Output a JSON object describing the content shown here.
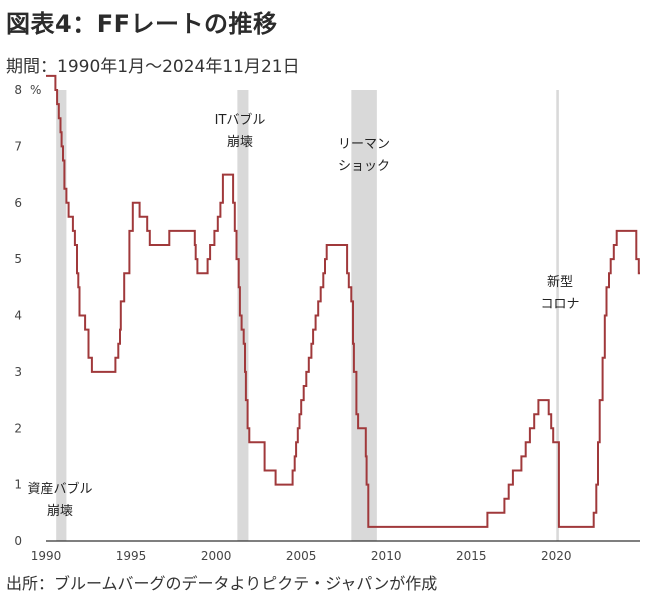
{
  "header": {
    "title": "図表4：FFレートの推移",
    "subtitle": "期間：1990年1月～2024年11月21日"
  },
  "footer": {
    "source": "出所：ブルームバーグのデータよりピクテ・ジャパンが作成"
  },
  "colors": {
    "line": "#a0393b",
    "band": "#d9d9d9",
    "axis": "#333333"
  },
  "chart_data": {
    "type": "line",
    "title": "FFレートの推移",
    "xlabel": "",
    "ylabel": "%",
    "xlim": [
      1990,
      2024.92
    ],
    "ylim": [
      0,
      8
    ],
    "xticks": [
      1990,
      1995,
      2000,
      2005,
      2010,
      2015,
      2020
    ],
    "yticks": [
      0,
      1,
      2,
      3,
      4,
      5,
      6,
      7,
      8
    ],
    "y_unit_label": "%",
    "grid": false,
    "step": true,
    "shaded_periods": [
      {
        "start": 1990.6,
        "end": 1991.2,
        "label": [
          "資産バブル",
          "崩壊"
        ]
      },
      {
        "start": 2001.25,
        "end": 2001.9,
        "label": [
          "ITバブル",
          "崩壊"
        ]
      },
      {
        "start": 2007.95,
        "end": 2009.45,
        "label": [
          "リーマン",
          "ショック"
        ]
      },
      {
        "start": 2020.0,
        "end": 2020.15,
        "label": [
          "新型",
          "コロナ"
        ]
      }
    ],
    "series": [
      {
        "values": [
          [
            1990.0,
            8.25
          ],
          [
            1990.55,
            8.0
          ],
          [
            1990.65,
            7.75
          ],
          [
            1990.75,
            7.5
          ],
          [
            1990.85,
            7.25
          ],
          [
            1990.92,
            7.0
          ],
          [
            1991.0,
            6.75
          ],
          [
            1991.08,
            6.25
          ],
          [
            1991.2,
            6.0
          ],
          [
            1991.33,
            5.75
          ],
          [
            1991.58,
            5.5
          ],
          [
            1991.7,
            5.25
          ],
          [
            1991.82,
            4.75
          ],
          [
            1991.9,
            4.5
          ],
          [
            1991.97,
            4.0
          ],
          [
            1992.3,
            3.75
          ],
          [
            1992.5,
            3.25
          ],
          [
            1992.7,
            3.0
          ],
          [
            1994.08,
            3.25
          ],
          [
            1994.25,
            3.5
          ],
          [
            1994.35,
            3.75
          ],
          [
            1994.4,
            4.25
          ],
          [
            1994.6,
            4.75
          ],
          [
            1994.9,
            5.5
          ],
          [
            1995.1,
            6.0
          ],
          [
            1995.5,
            5.75
          ],
          [
            1995.95,
            5.5
          ],
          [
            1996.1,
            5.25
          ],
          [
            1997.25,
            5.5
          ],
          [
            1998.75,
            5.25
          ],
          [
            1998.8,
            5.0
          ],
          [
            1998.9,
            4.75
          ],
          [
            1999.5,
            5.0
          ],
          [
            1999.65,
            5.25
          ],
          [
            1999.9,
            5.5
          ],
          [
            2000.1,
            5.75
          ],
          [
            2000.25,
            6.0
          ],
          [
            2000.4,
            6.5
          ],
          [
            2001.0,
            6.0
          ],
          [
            2001.1,
            5.5
          ],
          [
            2001.2,
            5.0
          ],
          [
            2001.33,
            4.5
          ],
          [
            2001.4,
            4.0
          ],
          [
            2001.5,
            3.75
          ],
          [
            2001.62,
            3.5
          ],
          [
            2001.7,
            3.0
          ],
          [
            2001.75,
            2.5
          ],
          [
            2001.85,
            2.0
          ],
          [
            2001.95,
            1.75
          ],
          [
            2002.85,
            1.25
          ],
          [
            2003.5,
            1.0
          ],
          [
            2004.5,
            1.25
          ],
          [
            2004.62,
            1.5
          ],
          [
            2004.7,
            1.75
          ],
          [
            2004.8,
            2.0
          ],
          [
            2004.9,
            2.25
          ],
          [
            2005.0,
            2.5
          ],
          [
            2005.15,
            2.75
          ],
          [
            2005.3,
            3.0
          ],
          [
            2005.45,
            3.25
          ],
          [
            2005.6,
            3.5
          ],
          [
            2005.7,
            3.75
          ],
          [
            2005.85,
            4.0
          ],
          [
            2006.0,
            4.25
          ],
          [
            2006.15,
            4.5
          ],
          [
            2006.3,
            4.75
          ],
          [
            2006.4,
            5.0
          ],
          [
            2006.5,
            5.25
          ],
          [
            2007.7,
            4.75
          ],
          [
            2007.8,
            4.5
          ],
          [
            2007.95,
            4.25
          ],
          [
            2008.05,
            3.5
          ],
          [
            2008.1,
            3.0
          ],
          [
            2008.25,
            2.25
          ],
          [
            2008.35,
            2.0
          ],
          [
            2008.8,
            1.5
          ],
          [
            2008.85,
            1.0
          ],
          [
            2008.95,
            0.25
          ],
          [
            2015.95,
            0.5
          ],
          [
            2016.95,
            0.75
          ],
          [
            2017.2,
            1.0
          ],
          [
            2017.45,
            1.25
          ],
          [
            2017.95,
            1.5
          ],
          [
            2018.2,
            1.75
          ],
          [
            2018.45,
            2.0
          ],
          [
            2018.7,
            2.25
          ],
          [
            2018.95,
            2.5
          ],
          [
            2019.55,
            2.25
          ],
          [
            2019.7,
            2.0
          ],
          [
            2019.82,
            1.75
          ],
          [
            2020.15,
            0.25
          ],
          [
            2022.2,
            0.5
          ],
          [
            2022.35,
            1.0
          ],
          [
            2022.45,
            1.75
          ],
          [
            2022.55,
            2.5
          ],
          [
            2022.72,
            3.25
          ],
          [
            2022.85,
            4.0
          ],
          [
            2022.95,
            4.5
          ],
          [
            2023.1,
            4.75
          ],
          [
            2023.2,
            5.0
          ],
          [
            2023.38,
            5.25
          ],
          [
            2023.55,
            5.5
          ],
          [
            2024.7,
            5.0
          ],
          [
            2024.85,
            4.75
          ],
          [
            2024.92,
            4.75
          ]
        ]
      }
    ]
  }
}
